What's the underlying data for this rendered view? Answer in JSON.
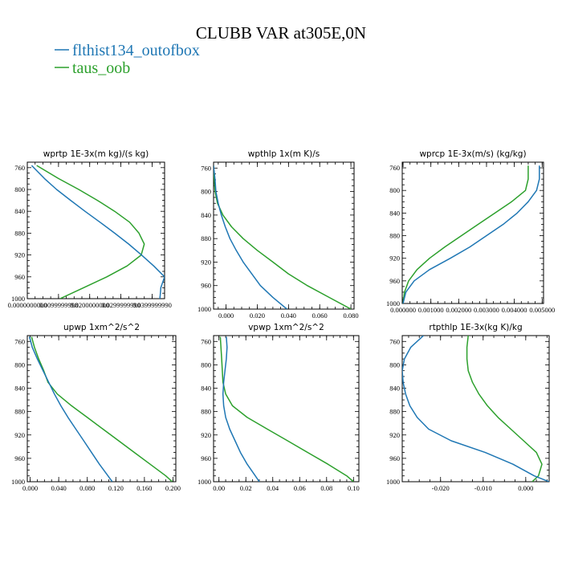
{
  "figure_title": "CLUBB VAR at305E,0N",
  "legend": [
    {
      "label": "flthist134_outofbox",
      "color": "#1f77b4"
    },
    {
      "label": "taus_oob",
      "color": "#2ca02c"
    }
  ],
  "colors": {
    "series1": "#1f77b4",
    "series2": "#2ca02c"
  },
  "chart_data": [
    {
      "type": "line",
      "title": "wprtp  1E-3x(m kg)/(s kg)",
      "xlabel": "",
      "ylabel": "",
      "ylim": [
        1000,
        750
      ],
      "xlim": [
        0.0,
        0.044
      ],
      "yticks": [
        760,
        800,
        840,
        880,
        920,
        960,
        1000
      ],
      "xticks": [
        0.0,
        0.01,
        0.02,
        0.03,
        0.04
      ],
      "xtick_labels": [
        "0.0000000000",
        "0.0099999998",
        "0.0200000000",
        "0.0299999990",
        "0.0399999990"
      ],
      "y": [
        756,
        780,
        800,
        820,
        840,
        860,
        880,
        900,
        920,
        940,
        960,
        980,
        1000
      ],
      "series": [
        {
          "name": "flthist134_outofbox",
          "values": [
            0.0014,
            0.0055,
            0.0094,
            0.0139,
            0.0185,
            0.0233,
            0.028,
            0.0325,
            0.0366,
            0.0405,
            0.044,
            0.0428,
            0.0425
          ]
        },
        {
          "name": "taus_oob",
          "values": [
            0.003,
            0.01,
            0.0165,
            0.0225,
            0.028,
            0.0328,
            0.0358,
            0.0375,
            0.0365,
            0.032,
            0.0255,
            0.018,
            0.0105
          ]
        }
      ]
    },
    {
      "type": "line",
      "title": "wpthlp  1x(m K)/s",
      "xlabel": "",
      "ylabel": "",
      "ylim": [
        1000,
        750
      ],
      "xlim": [
        -0.008,
        0.082
      ],
      "yticks": [
        760,
        800,
        840,
        880,
        920,
        960,
        1000
      ],
      "xticks": [
        0.0,
        0.02,
        0.04,
        0.06,
        0.08
      ],
      "xtick_labels": [
        "0.000",
        "0.020",
        "0.040",
        "0.060",
        "0.080"
      ],
      "y": [
        756,
        780,
        800,
        820,
        840,
        860,
        880,
        900,
        920,
        940,
        960,
        980,
        1000
      ],
      "series": [
        {
          "name": "flthist134_outofbox",
          "values": [
            -0.008,
            -0.007,
            -0.0065,
            -0.005,
            -0.003,
            -0.0005,
            0.0025,
            0.0065,
            0.011,
            0.0165,
            0.022,
            0.03,
            0.039
          ]
        },
        {
          "name": "taus_oob",
          "values": [
            -0.008,
            -0.0075,
            -0.007,
            -0.0055,
            -0.002,
            0.0035,
            0.011,
            0.02,
            0.03,
            0.04,
            0.052,
            0.066,
            0.08
          ]
        }
      ]
    },
    {
      "type": "line",
      "title": "wprcp  1E-3x(m/s) (kg/kg)",
      "xlabel": "",
      "ylabel": "",
      "ylim": [
        1000,
        750
      ],
      "xlim": [
        -3e-05,
        0.00505
      ],
      "yticks": [
        760,
        800,
        840,
        880,
        920,
        960,
        1000
      ],
      "xticks": [
        0.0,
        0.001,
        0.002,
        0.003,
        0.004,
        0.005
      ],
      "xtick_labels": [
        "0.000000",
        "0.001000",
        "0.002000",
        "0.003000",
        "0.004000",
        "0.005000"
      ],
      "y": [
        756,
        780,
        800,
        820,
        840,
        860,
        880,
        900,
        920,
        940,
        960,
        980,
        1000
      ],
      "series": [
        {
          "name": "flthist134_outofbox",
          "values": [
            0.0049,
            0.0049,
            0.0048,
            0.0045,
            0.0041,
            0.0036,
            0.003,
            0.0024,
            0.0017,
            0.00095,
            0.0004,
            0.0001,
            0.0
          ]
        },
        {
          "name": "taus_oob",
          "values": [
            0.0045,
            0.0045,
            0.0044,
            0.0039,
            0.0033,
            0.0027,
            0.0021,
            0.0015,
            0.00095,
            0.0005,
            0.0002,
            5e-05,
            0.0
          ]
        }
      ]
    },
    {
      "type": "line",
      "title": "upwp  1xm^2/s^2",
      "xlabel": "",
      "ylabel": "",
      "ylim": [
        1000,
        750
      ],
      "xlim": [
        -0.004,
        0.204
      ],
      "yticks": [
        760,
        800,
        840,
        880,
        920,
        960,
        1000
      ],
      "xticks": [
        0.0,
        0.04,
        0.08,
        0.12,
        0.16,
        0.2
      ],
      "xtick_labels": [
        "0.000",
        "0.040",
        "0.080",
        "0.120",
        "0.160",
        "0.200"
      ],
      "y": [
        752,
        770,
        790,
        810,
        830,
        850,
        870,
        890,
        910,
        930,
        950,
        970,
        990,
        1000
      ],
      "series": [
        {
          "name": "flthist134_outofbox",
          "values": [
            -0.001,
            0.003,
            0.01,
            0.018,
            0.026,
            0.034,
            0.043,
            0.053,
            0.064,
            0.075,
            0.086,
            0.097,
            0.109,
            0.115
          ]
        },
        {
          "name": "taus_oob",
          "values": [
            0.002,
            0.006,
            0.012,
            0.019,
            0.025,
            0.038,
            0.058,
            0.08,
            0.102,
            0.124,
            0.146,
            0.168,
            0.19,
            0.199
          ]
        }
      ]
    },
    {
      "type": "line",
      "title": "vpwp  1xm^2/s^2",
      "xlabel": "",
      "ylabel": "",
      "ylim": [
        1000,
        750
      ],
      "xlim": [
        -0.004,
        0.104
      ],
      "yticks": [
        760,
        800,
        840,
        880,
        920,
        960,
        1000
      ],
      "xticks": [
        0.0,
        0.02,
        0.04,
        0.06,
        0.08,
        0.1
      ],
      "xtick_labels": [
        "0.00",
        "0.02",
        "0.04",
        "0.06",
        "0.08",
        "0.10"
      ],
      "y": [
        752,
        770,
        790,
        810,
        830,
        850,
        870,
        890,
        910,
        930,
        950,
        970,
        990,
        1000
      ],
      "series": [
        {
          "name": "flthist134_outofbox",
          "values": [
            0.0055,
            0.006,
            0.0055,
            0.0045,
            0.0035,
            0.003,
            0.0035,
            0.005,
            0.008,
            0.012,
            0.016,
            0.021,
            0.027,
            0.03
          ]
        },
        {
          "name": "taus_oob",
          "values": [
            0.001,
            0.0015,
            0.002,
            0.0025,
            0.003,
            0.005,
            0.01,
            0.021,
            0.036,
            0.051,
            0.066,
            0.081,
            0.095,
            0.1
          ]
        }
      ]
    },
    {
      "type": "line",
      "title": "rtpthlp  1E-3x(kg K)/kg",
      "xlabel": "",
      "ylabel": "",
      "ylim": [
        1000,
        750
      ],
      "xlim": [
        -0.029,
        0.0055
      ],
      "yticks": [
        760,
        800,
        840,
        880,
        920,
        960,
        1000
      ],
      "xticks": [
        -0.02,
        -0.01,
        0.0
      ],
      "xtick_labels": [
        "-0.020",
        "-0.010",
        "0.000"
      ],
      "y": [
        750,
        770,
        790,
        810,
        830,
        850,
        870,
        890,
        910,
        930,
        950,
        970,
        990,
        1000
      ],
      "series": [
        {
          "name": "flthist134_outofbox",
          "values": [
            -0.024,
            -0.027,
            -0.0285,
            -0.029,
            -0.0288,
            -0.0282,
            -0.0272,
            -0.0255,
            -0.0228,
            -0.0175,
            -0.0095,
            -0.003,
            0.002,
            0.0055
          ]
        },
        {
          "name": "taus_oob",
          "values": [
            -0.0135,
            -0.0138,
            -0.0138,
            -0.0135,
            -0.0125,
            -0.011,
            -0.009,
            -0.0065,
            -0.0035,
            -0.0005,
            0.0025,
            0.0038,
            0.003,
            0.0015
          ]
        }
      ]
    }
  ]
}
